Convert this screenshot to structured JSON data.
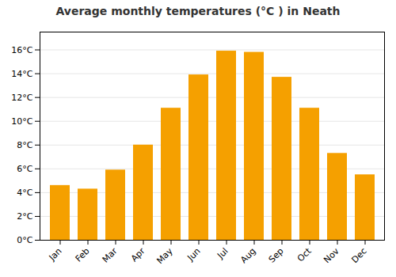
{
  "chart_data": {
    "type": "bar",
    "title": "Average monthly temperatures (°C ) in Neath",
    "categories": [
      "Jan",
      "Feb",
      "Mar",
      "Apr",
      "May",
      "Jun",
      "Jul",
      "Aug",
      "Sep",
      "Oct",
      "Nov",
      "Dec"
    ],
    "values": [
      4.6,
      4.3,
      5.9,
      8.0,
      11.1,
      13.9,
      15.9,
      15.8,
      13.7,
      11.1,
      7.3,
      5.5
    ],
    "color": "#F5A000",
    "ylim": [
      0,
      17.5
    ],
    "yticks": [
      {
        "value": 0,
        "label": "0°C"
      },
      {
        "value": 2,
        "label": "2°C"
      },
      {
        "value": 4,
        "label": "4°C"
      },
      {
        "value": 6,
        "label": "6°C"
      },
      {
        "value": 8,
        "label": "8°C"
      },
      {
        "value": 10,
        "label": "10°C"
      },
      {
        "value": 12,
        "label": "12°C"
      },
      {
        "value": 14,
        "label": "14°C"
      },
      {
        "value": 16,
        "label": "16°C"
      }
    ],
    "grid": true
  }
}
